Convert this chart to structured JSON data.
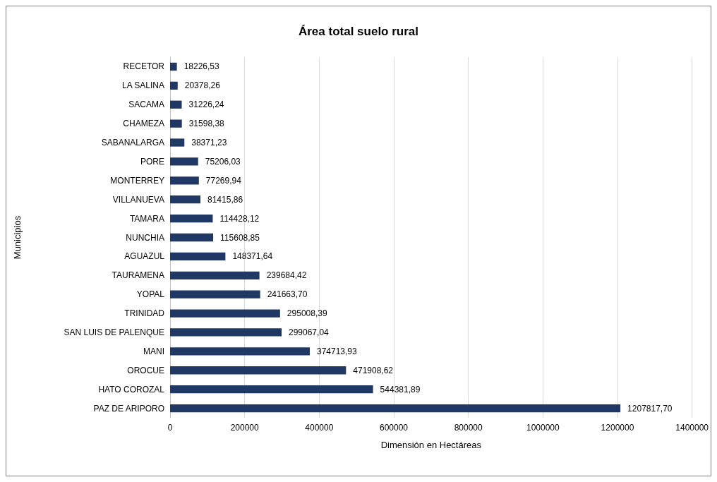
{
  "chart_data": {
    "type": "bar",
    "orientation": "horizontal",
    "title": "Área total suelo rural",
    "xlabel": "Dimensión en Hectáreas",
    "ylabel": "Municipios",
    "categories": [
      "RECETOR",
      "LA SALINA",
      "SACAMA",
      "CHAMEZA",
      "SABANALARGA",
      "PORE",
      "MONTERREY",
      "VILLANUEVA",
      "TAMARA",
      "NUNCHIA",
      "AGUAZUL",
      "TAURAMENA",
      "YOPAL",
      "TRINIDAD",
      "SAN LUIS DE PALENQUE",
      "MANI",
      "OROCUE",
      "HATO COROZAL",
      "PAZ DE ARIPORO"
    ],
    "series": [
      {
        "color": "#203864",
        "values": [
          18226.53,
          20378.26,
          31226.24,
          31598.38,
          38371.23,
          75206.03,
          77269.94,
          81415.86,
          114428.12,
          115608.85,
          148371.64,
          239684.42,
          241663.7,
          295008.39,
          299067.04,
          374713.93,
          471908.62,
          544381.89,
          1207817.7
        ]
      }
    ],
    "value_labels": [
      "18226,53",
      "20378,26",
      "31226,24",
      "31598,38",
      "38371,23",
      "75206,03",
      "77269,94",
      "81415,86",
      "114428,12",
      "115608,85",
      "148371,64",
      "239684,42",
      "241663,70",
      "295008,39",
      "299067,04",
      "374713,93",
      "471908,62",
      "544381,89",
      "1207817,70"
    ],
    "xlim": [
      0,
      1400000
    ],
    "xticks": [
      0,
      200000,
      400000,
      600000,
      800000,
      1000000,
      1200000,
      1400000
    ],
    "grid": "x"
  }
}
